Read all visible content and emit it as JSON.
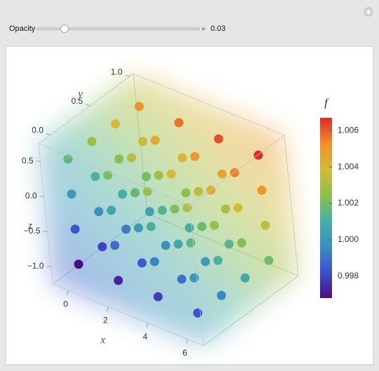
{
  "control": {
    "label": "Opacity",
    "value": 0.03
  },
  "chart_data": {
    "type": "scatter3d",
    "xlabel": "x",
    "ylabel": "y",
    "zlabel": "z",
    "x_grid": [
      0,
      2,
      4,
      6
    ],
    "y_grid": [
      0,
      0.3,
      0.6,
      0.9
    ],
    "z_grid": [
      -1,
      -0.5,
      0,
      0.5
    ],
    "xlim": [
      -0.8,
      6.8
    ],
    "ylim": [
      -0.15,
      1.05
    ],
    "zlim": [
      -1.25,
      0.75
    ],
    "xticks": [
      0,
      2,
      4,
      6
    ],
    "yticks": [
      {
        "value": 0,
        "label": "0.0"
      },
      0.5,
      {
        "value": 1,
        "label": "1.0"
      }
    ],
    "zticks": [
      {
        "value": -1,
        "label": "−1.0"
      },
      {
        "value": -0.5,
        "label": "−0.5"
      },
      {
        "value": 0,
        "label": "0.0"
      },
      0.5
    ],
    "f": [
      [
        [
          0.9968,
          0.9984,
          1.0,
          1.0016
        ],
        [
          0.998,
          0.9996,
          1.0012,
          1.0028
        ],
        [
          0.9992,
          1.0008,
          1.0024,
          1.004
        ],
        [
          1.0004,
          1.002,
          1.0036,
          1.0052
        ]
      ],
      [
        [
          0.9973,
          0.9989,
          1.0005,
          1.0021
        ],
        [
          0.9985,
          1.0001,
          1.0017,
          1.0033
        ],
        [
          0.9997,
          1.0013,
          1.0029,
          1.0045
        ],
        [
          1.0009,
          1.0025,
          1.0041,
          1.0057
        ]
      ],
      [
        [
          0.9978,
          0.9994,
          1.001,
          1.0026
        ],
        [
          0.999,
          1.0006,
          1.0022,
          1.0038
        ],
        [
          1.0002,
          1.0018,
          1.0034,
          1.005
        ],
        [
          1.0014,
          1.003,
          1.0046,
          1.0062
        ]
      ],
      [
        [
          0.9983,
          0.9999,
          1.0015,
          1.0031
        ],
        [
          0.9995,
          1.0011,
          1.0027,
          1.0043
        ],
        [
          1.0007,
          1.0023,
          1.0039,
          1.0055
        ],
        [
          1.0019,
          1.0035,
          1.0051,
          1.0067
        ]
      ]
    ],
    "colorbar": {
      "title": "f",
      "clim": [
        0.9968,
        1.0067
      ],
      "ticks": [
        0.998,
        {
          "value": 1.0,
          "label": "1.000"
        },
        1.002,
        1.004,
        1.006
      ],
      "colors": [
        "#4b0e7c",
        "#3c4fd0",
        "#3a8fc0",
        "#48b0a0",
        "#8cc04e",
        "#d4bb38",
        "#f0902c",
        "#d92b2b"
      ]
    }
  }
}
